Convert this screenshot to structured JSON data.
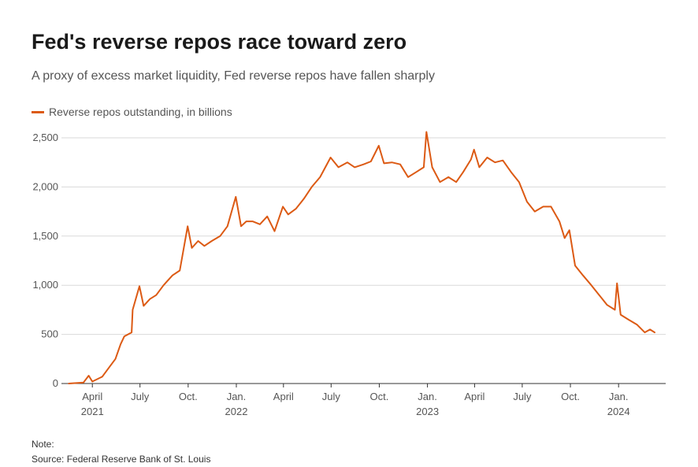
{
  "header": {
    "title": "Fed's reverse repos race toward zero",
    "subtitle": "A proxy of excess market liquidity, Fed reverse repos have fallen sharply"
  },
  "footer": {
    "note": "Note:",
    "source": "Source: Federal Reserve Bank of St. Louis"
  },
  "colors": {
    "series": "#dc5a14",
    "grid": "#d9d9d9",
    "axis": "#333333"
  },
  "chart_data": {
    "type": "line",
    "title": "Fed's reverse repos race toward zero",
    "subtitle": "A proxy of excess market liquidity, Fed reverse repos have fallen sharply",
    "xlabel": "",
    "ylabel": "",
    "ylim": [
      0,
      2500
    ],
    "yticks": [
      "0",
      "500",
      "1,000",
      "1,500",
      "2,000",
      "2,500"
    ],
    "yticks_values": [
      0,
      500,
      1000,
      1500,
      2000,
      2500
    ],
    "xlim": [
      "2021-02-01",
      "2024-03-31"
    ],
    "xticks": [
      {
        "date": "2021-04-01",
        "label": "April",
        "year": "2021"
      },
      {
        "date": "2021-07-01",
        "label": "July",
        "year": ""
      },
      {
        "date": "2021-10-01",
        "label": "Oct.",
        "year": ""
      },
      {
        "date": "2022-01-01",
        "label": "Jan.",
        "year": "2022"
      },
      {
        "date": "2022-04-01",
        "label": "April",
        "year": ""
      },
      {
        "date": "2022-07-01",
        "label": "July",
        "year": ""
      },
      {
        "date": "2022-10-01",
        "label": "Oct.",
        "year": ""
      },
      {
        "date": "2023-01-01",
        "label": "Jan.",
        "year": "2023"
      },
      {
        "date": "2023-04-01",
        "label": "April",
        "year": ""
      },
      {
        "date": "2023-07-01",
        "label": "July",
        "year": ""
      },
      {
        "date": "2023-10-01",
        "label": "Oct.",
        "year": ""
      },
      {
        "date": "2024-01-01",
        "label": "Jan.",
        "year": "2024"
      }
    ],
    "grid": true,
    "legend": "top-left",
    "series": [
      {
        "name": "Reverse repos outstanding, in billions",
        "color": "#dc5a14",
        "points": [
          [
            "2021-02-15",
            0
          ],
          [
            "2021-03-01",
            5
          ],
          [
            "2021-03-15",
            10
          ],
          [
            "2021-03-25",
            80
          ],
          [
            "2021-04-01",
            20
          ],
          [
            "2021-04-20",
            70
          ],
          [
            "2021-05-01",
            150
          ],
          [
            "2021-05-15",
            250
          ],
          [
            "2021-05-25",
            400
          ],
          [
            "2021-06-01",
            480
          ],
          [
            "2021-06-15",
            520
          ],
          [
            "2021-06-17",
            750
          ],
          [
            "2021-06-30",
            990
          ],
          [
            "2021-07-08",
            790
          ],
          [
            "2021-07-20",
            860
          ],
          [
            "2021-08-01",
            900
          ],
          [
            "2021-08-15",
            1000
          ],
          [
            "2021-09-01",
            1100
          ],
          [
            "2021-09-15",
            1150
          ],
          [
            "2021-09-30",
            1600
          ],
          [
            "2021-10-08",
            1380
          ],
          [
            "2021-10-20",
            1450
          ],
          [
            "2021-11-01",
            1400
          ],
          [
            "2021-11-15",
            1450
          ],
          [
            "2021-12-01",
            1500
          ],
          [
            "2021-12-15",
            1600
          ],
          [
            "2021-12-31",
            1900
          ],
          [
            "2022-01-10",
            1600
          ],
          [
            "2022-01-20",
            1650
          ],
          [
            "2022-02-01",
            1650
          ],
          [
            "2022-02-15",
            1620
          ],
          [
            "2022-03-01",
            1700
          ],
          [
            "2022-03-15",
            1550
          ],
          [
            "2022-03-31",
            1800
          ],
          [
            "2022-04-10",
            1720
          ],
          [
            "2022-04-25",
            1780
          ],
          [
            "2022-05-10",
            1880
          ],
          [
            "2022-05-25",
            2000
          ],
          [
            "2022-06-10",
            2100
          ],
          [
            "2022-06-30",
            2300
          ],
          [
            "2022-07-15",
            2200
          ],
          [
            "2022-08-01",
            2250
          ],
          [
            "2022-08-15",
            2200
          ],
          [
            "2022-09-01",
            2230
          ],
          [
            "2022-09-15",
            2260
          ],
          [
            "2022-09-30",
            2420
          ],
          [
            "2022-10-10",
            2240
          ],
          [
            "2022-10-25",
            2250
          ],
          [
            "2022-11-10",
            2230
          ],
          [
            "2022-11-25",
            2100
          ],
          [
            "2022-12-10",
            2150
          ],
          [
            "2022-12-25",
            2200
          ],
          [
            "2022-12-30",
            2560
          ],
          [
            "2023-01-10",
            2200
          ],
          [
            "2023-01-25",
            2050
          ],
          [
            "2023-02-10",
            2100
          ],
          [
            "2023-02-25",
            2050
          ],
          [
            "2023-03-10",
            2150
          ],
          [
            "2023-03-25",
            2280
          ],
          [
            "2023-03-31",
            2380
          ],
          [
            "2023-04-10",
            2200
          ],
          [
            "2023-04-25",
            2300
          ],
          [
            "2023-05-10",
            2250
          ],
          [
            "2023-05-25",
            2270
          ],
          [
            "2023-06-10",
            2150
          ],
          [
            "2023-06-25",
            2050
          ],
          [
            "2023-07-10",
            1850
          ],
          [
            "2023-07-25",
            1750
          ],
          [
            "2023-08-10",
            1800
          ],
          [
            "2023-08-25",
            1800
          ],
          [
            "2023-09-10",
            1650
          ],
          [
            "2023-09-20",
            1480
          ],
          [
            "2023-09-29",
            1560
          ],
          [
            "2023-10-10",
            1200
          ],
          [
            "2023-10-25",
            1100
          ],
          [
            "2023-11-10",
            1000
          ],
          [
            "2023-11-25",
            900
          ],
          [
            "2023-12-10",
            800
          ],
          [
            "2023-12-25",
            750
          ],
          [
            "2023-12-29",
            1020
          ],
          [
            "2024-01-05",
            700
          ],
          [
            "2024-01-20",
            650
          ],
          [
            "2024-02-05",
            600
          ],
          [
            "2024-02-20",
            520
          ],
          [
            "2024-03-01",
            550
          ],
          [
            "2024-03-10",
            520
          ]
        ]
      }
    ]
  }
}
